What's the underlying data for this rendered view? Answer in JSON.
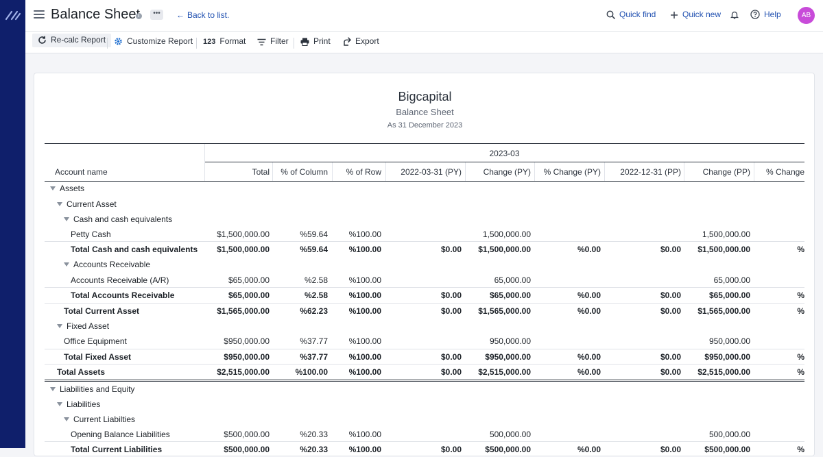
{
  "header": {
    "title": "Balance Sheet",
    "info_glyph": "i",
    "more_glyph": "•••",
    "back_label": "Back to list.",
    "quick_find": "Quick find",
    "quick_new": "Quick new",
    "help": "Help",
    "avatar_initials": "AB"
  },
  "toolbar": {
    "recalc": "Re-calc Report",
    "customize": "Customize Report",
    "format_prefix": "123",
    "format": "Format",
    "filter": "Filter",
    "print": "Print",
    "export": "Export"
  },
  "report": {
    "company": "Bigcapital",
    "title": "Balance Sheet",
    "date": "As 31 December 2023",
    "period_group": "2023-03",
    "columns": [
      "Account name",
      "Total",
      "% of Column",
      "% of Row",
      "2022-03-31 (PY)",
      "Change (PY)",
      "% Change (PY)",
      "2022-12-31 (PP)",
      "Change (PP)",
      "% Change"
    ],
    "rows": [
      {
        "name": "Assets",
        "level": 0,
        "group": true,
        "values": [
          "",
          "",
          "",
          "",
          "",
          "",
          "",
          "",
          ""
        ]
      },
      {
        "name": "Current Asset",
        "level": 1,
        "group": true,
        "values": [
          "",
          "",
          "",
          "",
          "",
          "",
          "",
          "",
          ""
        ]
      },
      {
        "name": "Cash and cash equivalents",
        "level": 2,
        "group": true,
        "values": [
          "",
          "",
          "",
          "",
          "",
          "",
          "",
          "",
          ""
        ]
      },
      {
        "name": "Petty Cash",
        "level": 3,
        "values": [
          "$1,500,000.00",
          "%59.64",
          "%100.00",
          "",
          "1,500,000.00",
          "",
          "",
          "1,500,000.00",
          ""
        ]
      },
      {
        "name": "Total Cash and cash equivalents",
        "level": 3,
        "total": true,
        "values": [
          "$1,500,000.00",
          "%59.64",
          "%100.00",
          "$0.00",
          "$1,500,000.00",
          "%0.00",
          "$0.00",
          "$1,500,000.00",
          "%"
        ]
      },
      {
        "name": "Accounts Receivable",
        "level": 2,
        "group": true,
        "values": [
          "",
          "",
          "",
          "",
          "",
          "",
          "",
          "",
          ""
        ]
      },
      {
        "name": "Accounts Receivable (A/R)",
        "level": 3,
        "values": [
          "$65,000.00",
          "%2.58",
          "%100.00",
          "",
          "65,000.00",
          "",
          "",
          "65,000.00",
          ""
        ]
      },
      {
        "name": "Total Accounts Receivable",
        "level": 3,
        "total": true,
        "values": [
          "$65,000.00",
          "%2.58",
          "%100.00",
          "$0.00",
          "$65,000.00",
          "%0.00",
          "$0.00",
          "$65,000.00",
          "%"
        ]
      },
      {
        "name": "Total Current Asset",
        "level": 2,
        "total": true,
        "values": [
          "$1,565,000.00",
          "%62.23",
          "%100.00",
          "$0.00",
          "$1,565,000.00",
          "%0.00",
          "$0.00",
          "$1,565,000.00",
          "%"
        ]
      },
      {
        "name": "Fixed Asset",
        "level": 1,
        "group": true,
        "values": [
          "",
          "",
          "",
          "",
          "",
          "",
          "",
          "",
          ""
        ]
      },
      {
        "name": "Office Equipment",
        "level": 2,
        "values": [
          "$950,000.00",
          "%37.77",
          "%100.00",
          "",
          "950,000.00",
          "",
          "",
          "950,000.00",
          ""
        ]
      },
      {
        "name": "Total Fixed Asset",
        "level": 2,
        "total": true,
        "values": [
          "$950,000.00",
          "%37.77",
          "%100.00",
          "$0.00",
          "$950,000.00",
          "%0.00",
          "$0.00",
          "$950,000.00",
          "%"
        ]
      },
      {
        "name": "Total Assets",
        "level": 1,
        "total": true,
        "values": [
          "$2,515,000.00",
          "%100.00",
          "%100.00",
          "$0.00",
          "$2,515,000.00",
          "%0.00",
          "$0.00",
          "$2,515,000.00",
          "%"
        ]
      },
      {
        "name": "Liabilities and Equity",
        "level": 0,
        "group": true,
        "values": [
          "",
          "",
          "",
          "",
          "",
          "",
          "",
          "",
          ""
        ]
      },
      {
        "name": "Liabilities",
        "level": 1,
        "group": true,
        "values": [
          "",
          "",
          "",
          "",
          "",
          "",
          "",
          "",
          ""
        ]
      },
      {
        "name": "Current Liabilties",
        "level": 2,
        "group": true,
        "values": [
          "",
          "",
          "",
          "",
          "",
          "",
          "",
          "",
          ""
        ]
      },
      {
        "name": "Opening Balance Liabilities",
        "level": 3,
        "values": [
          "$500,000.00",
          "%20.33",
          "%100.00",
          "",
          "500,000.00",
          "",
          "",
          "500,000.00",
          ""
        ]
      },
      {
        "name": "Total Current Liabilities",
        "level": 3,
        "total": true,
        "values": [
          "$500,000.00",
          "%20.33",
          "%100.00",
          "$0.00",
          "$500,000.00",
          "%0.00",
          "$0.00",
          "$500,000.00",
          "%"
        ]
      }
    ]
  }
}
